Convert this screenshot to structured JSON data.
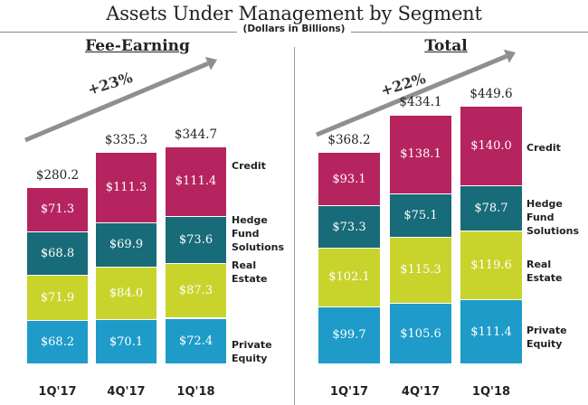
{
  "title": "Assets Under Management by Segment",
  "subtitle": "(Dollars in Billions)",
  "colors": {
    "credit": "#B5245F",
    "hedge": "#186B78",
    "real_estate": "#C8D42C",
    "private_equity": "#1E9BC9",
    "arrow": "#8F8F8F"
  },
  "chart_data": [
    {
      "type": "bar",
      "stacked": true,
      "title": "Fee-Earning",
      "growth_label": "+23%",
      "categories": [
        "1Q'17",
        "4Q'17",
        "1Q'18"
      ],
      "series": [
        {
          "name": "Private Equity",
          "values": [
            68.2,
            70.1,
            72.4
          ],
          "labels": [
            "$68.2",
            "$70.1",
            "$72.4"
          ]
        },
        {
          "name": "Real Estate",
          "values": [
            71.9,
            84.0,
            87.3
          ],
          "labels": [
            "$71.9",
            "$84.0",
            "$87.3"
          ]
        },
        {
          "name": "Hedge Fund Solutions",
          "values": [
            68.8,
            69.9,
            73.6
          ],
          "labels": [
            "$68.8",
            "$69.9",
            "$73.6"
          ]
        },
        {
          "name": "Credit",
          "values": [
            71.3,
            111.3,
            111.4
          ],
          "labels": [
            "$71.3",
            "$111.3",
            "$111.4"
          ]
        }
      ],
      "totals": [
        280.2,
        335.3,
        344.7
      ],
      "total_labels": [
        "$280.2",
        "$335.3",
        "$344.7"
      ],
      "legend": [
        [
          "Credit"
        ],
        [
          "Hedge",
          "Fund",
          "Solutions"
        ],
        [
          "Real",
          "Estate"
        ],
        [
          "Private",
          "Equity"
        ]
      ]
    },
    {
      "type": "bar",
      "stacked": true,
      "title": "Total",
      "growth_label": "+22%",
      "categories": [
        "1Q'17",
        "4Q'17",
        "1Q'18"
      ],
      "series": [
        {
          "name": "Private Equity",
          "values": [
            99.7,
            105.6,
            111.4
          ],
          "labels": [
            "$99.7",
            "$105.6",
            "$111.4"
          ]
        },
        {
          "name": "Real Estate",
          "values": [
            102.1,
            115.3,
            119.6
          ],
          "labels": [
            "$102.1",
            "$115.3",
            "$119.6"
          ]
        },
        {
          "name": "Hedge Fund Solutions",
          "values": [
            73.3,
            75.1,
            78.7
          ],
          "labels": [
            "$73.3",
            "$75.1",
            "$78.7"
          ]
        },
        {
          "name": "Credit",
          "values": [
            93.1,
            138.1,
            140.0
          ],
          "labels": [
            "$93.1",
            "$138.1",
            "$140.0"
          ]
        }
      ],
      "totals": [
        368.2,
        434.1,
        449.6
      ],
      "total_labels": [
        "$368.2",
        "$434.1",
        "$449.6"
      ],
      "legend": [
        [
          "Credit"
        ],
        [
          "Hedge",
          "Fund",
          "Solutions"
        ],
        [
          "Real",
          "Estate"
        ],
        [
          "Private",
          "Equity"
        ]
      ]
    }
  ]
}
